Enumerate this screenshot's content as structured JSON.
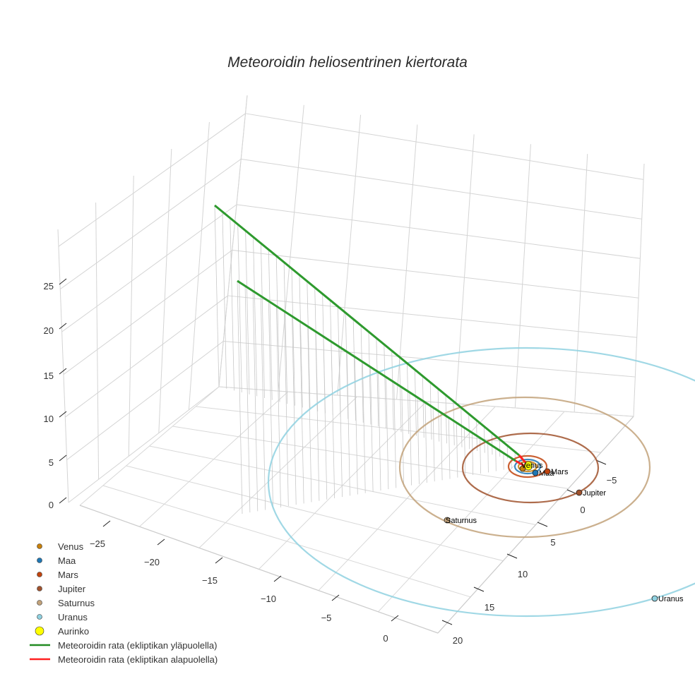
{
  "chart_data": {
    "type": "scatter3d",
    "title": "Meteoroidin heliosentrinen kiertorata",
    "x_ticks": [
      "−25",
      "−20",
      "−15",
      "−10",
      "−5",
      "0"
    ],
    "y_ticks": [
      "20",
      "15",
      "10",
      "5",
      "0",
      "−5"
    ],
    "z_ticks": [
      "0",
      "5",
      "10",
      "15",
      "20",
      "25"
    ],
    "planets": [
      {
        "name": "Venus",
        "color": "#c8800a",
        "orbit_radius_au": 0.72,
        "label": "Venus"
      },
      {
        "name": "Maa",
        "color": "#1f77b4",
        "orbit_radius_au": 1.0,
        "label": "Maa"
      },
      {
        "name": "Mars",
        "color": "#c1440e",
        "orbit_radius_au": 1.52,
        "label": "Mars"
      },
      {
        "name": "Jupiter",
        "color": "#a0522d",
        "orbit_radius_au": 5.2,
        "label": "Jupiter"
      },
      {
        "name": "Saturnus",
        "color": "#c2a27a",
        "orbit_radius_au": 9.5,
        "label": "Saturnus"
      },
      {
        "name": "Uranus",
        "color": "#8fd1e0",
        "orbit_radius_au": 19.2,
        "label": "Uranus"
      }
    ],
    "sun": {
      "name": "Aurinko",
      "color": "#ffff00"
    },
    "legend": [
      {
        "label": "Venus",
        "color": "#c8800a",
        "kind": "marker"
      },
      {
        "label": "Maa",
        "color": "#1f77b4",
        "kind": "marker"
      },
      {
        "label": "Mars",
        "color": "#c1440e",
        "kind": "marker"
      },
      {
        "label": "Jupiter",
        "color": "#a0522d",
        "kind": "marker"
      },
      {
        "label": "Saturnus",
        "color": "#c2a27a",
        "kind": "marker"
      },
      {
        "label": "Uranus",
        "color": "#8fd1e0",
        "kind": "marker"
      },
      {
        "label": "Aurinko",
        "color": "#ffff00",
        "kind": "big-marker"
      },
      {
        "label": "Meteoroidin rata (ekliptikan yläpuolella)",
        "color": "#228b22",
        "kind": "line"
      },
      {
        "label": "Meteoroidin rata (ekliptikan alapuolella)",
        "color": "#ff2020",
        "kind": "line"
      }
    ],
    "legend_placement": "bottom-left"
  }
}
